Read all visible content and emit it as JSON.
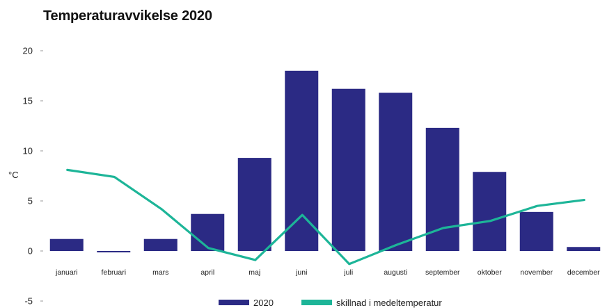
{
  "chart_data": {
    "type": "bar",
    "title": "Temperaturavvikelse 2020",
    "ylabel": "°C",
    "xlabel": "",
    "ylim": [
      -5,
      20
    ],
    "yticks": [
      20,
      15,
      10,
      5,
      0,
      -5
    ],
    "grid": false,
    "legend_position": "bottom",
    "categories": [
      "januari",
      "februari",
      "mars",
      "april",
      "maj",
      "juni",
      "juli",
      "augusti",
      "september",
      "oktober",
      "november",
      "december"
    ],
    "series": [
      {
        "name": "2020",
        "type": "bar",
        "color": "#2b2a84",
        "values": [
          1.2,
          -0.1,
          1.2,
          3.7,
          9.3,
          18.0,
          16.2,
          15.8,
          12.3,
          7.9,
          3.9,
          0.4
        ]
      },
      {
        "name": "skillnad i medeltemperatur",
        "type": "line",
        "color": "#1db598",
        "values": [
          8.1,
          7.4,
          4.2,
          0.3,
          -0.9,
          3.6,
          -1.3,
          0.6,
          2.3,
          3.0,
          4.5,
          5.1
        ]
      }
    ]
  }
}
